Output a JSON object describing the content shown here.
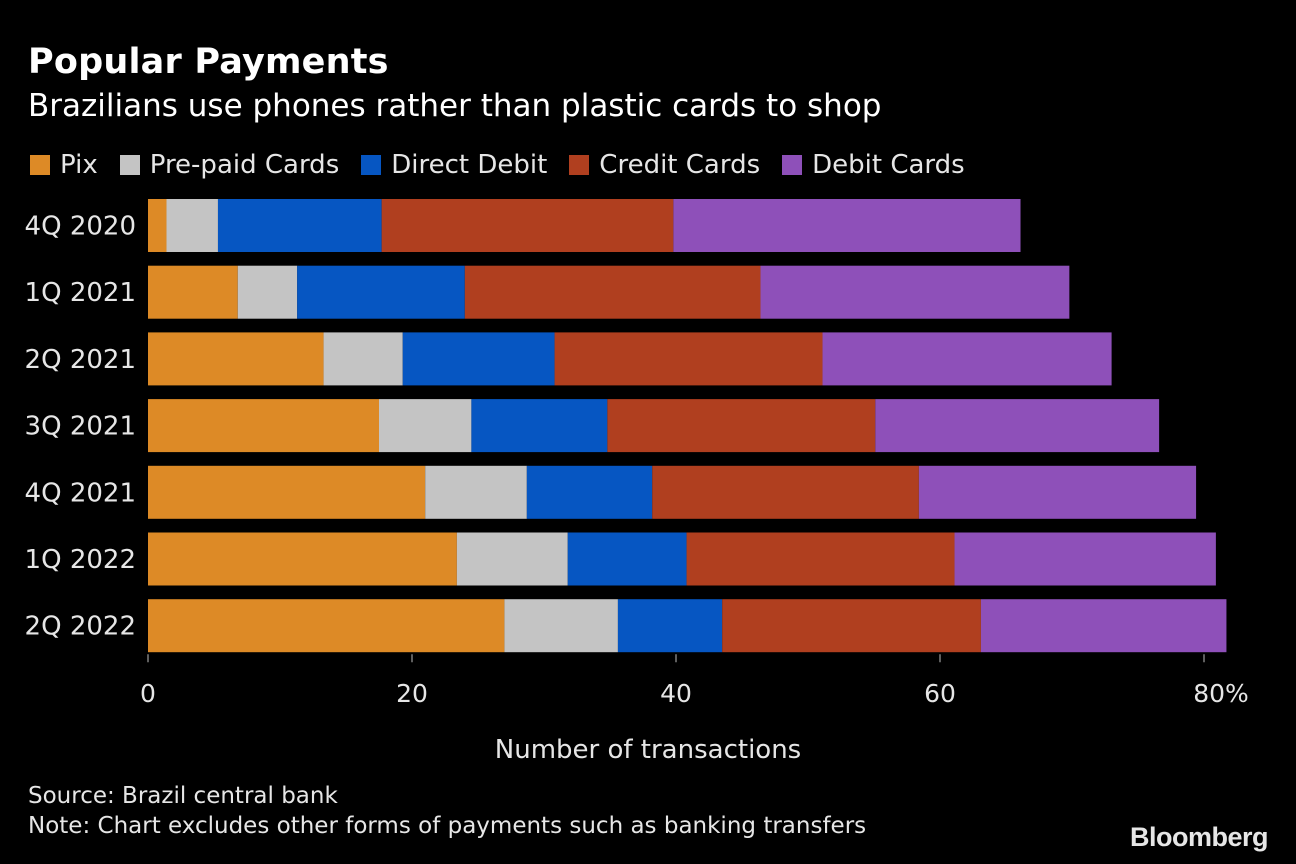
{
  "header": {
    "title": "Popular Payments",
    "subtitle": "Brazilians use phones rather than plastic cards to shop"
  },
  "footer": {
    "source": "Source: Brazil central bank",
    "note": "Note: Chart excludes other forms of payments such as banking transfers",
    "logo": "Bloomberg"
  },
  "chart_data": {
    "type": "bar",
    "orientation": "horizontal",
    "stacked": true,
    "categories": [
      "4Q 2020",
      "1Q 2021",
      "2Q 2021",
      "3Q 2021",
      "4Q 2021",
      "1Q 2022",
      "2Q 2022"
    ],
    "series": [
      {
        "name": "Pix",
        "color": "#dd8a26",
        "values": [
          1.4,
          6.8,
          13.3,
          17.5,
          21.0,
          23.4,
          27.0
        ]
      },
      {
        "name": "Pre-paid Cards",
        "color": "#c4c4c4",
        "values": [
          3.9,
          4.5,
          6.0,
          7.0,
          7.7,
          8.4,
          8.6
        ]
      },
      {
        "name": "Direct Debit",
        "color": "#0656c2",
        "values": [
          12.4,
          12.7,
          11.5,
          10.3,
          9.5,
          9.0,
          7.9
        ]
      },
      {
        "name": "Credit Cards",
        "color": "#b03f1f",
        "values": [
          22.1,
          22.4,
          20.3,
          20.3,
          20.2,
          20.3,
          19.6
        ]
      },
      {
        "name": "Debit Cards",
        "color": "#8e50b9",
        "values": [
          26.3,
          23.4,
          21.9,
          21.5,
          21.0,
          19.8,
          18.6
        ]
      }
    ],
    "xlabel": "Number of transactions",
    "x_ticks": [
      "0",
      "20",
      "40",
      "60",
      "80%"
    ],
    "x_tick_values": [
      0,
      20,
      40,
      60,
      80
    ],
    "xlim": [
      0,
      82
    ],
    "legend": "top-left",
    "grid": false
  }
}
